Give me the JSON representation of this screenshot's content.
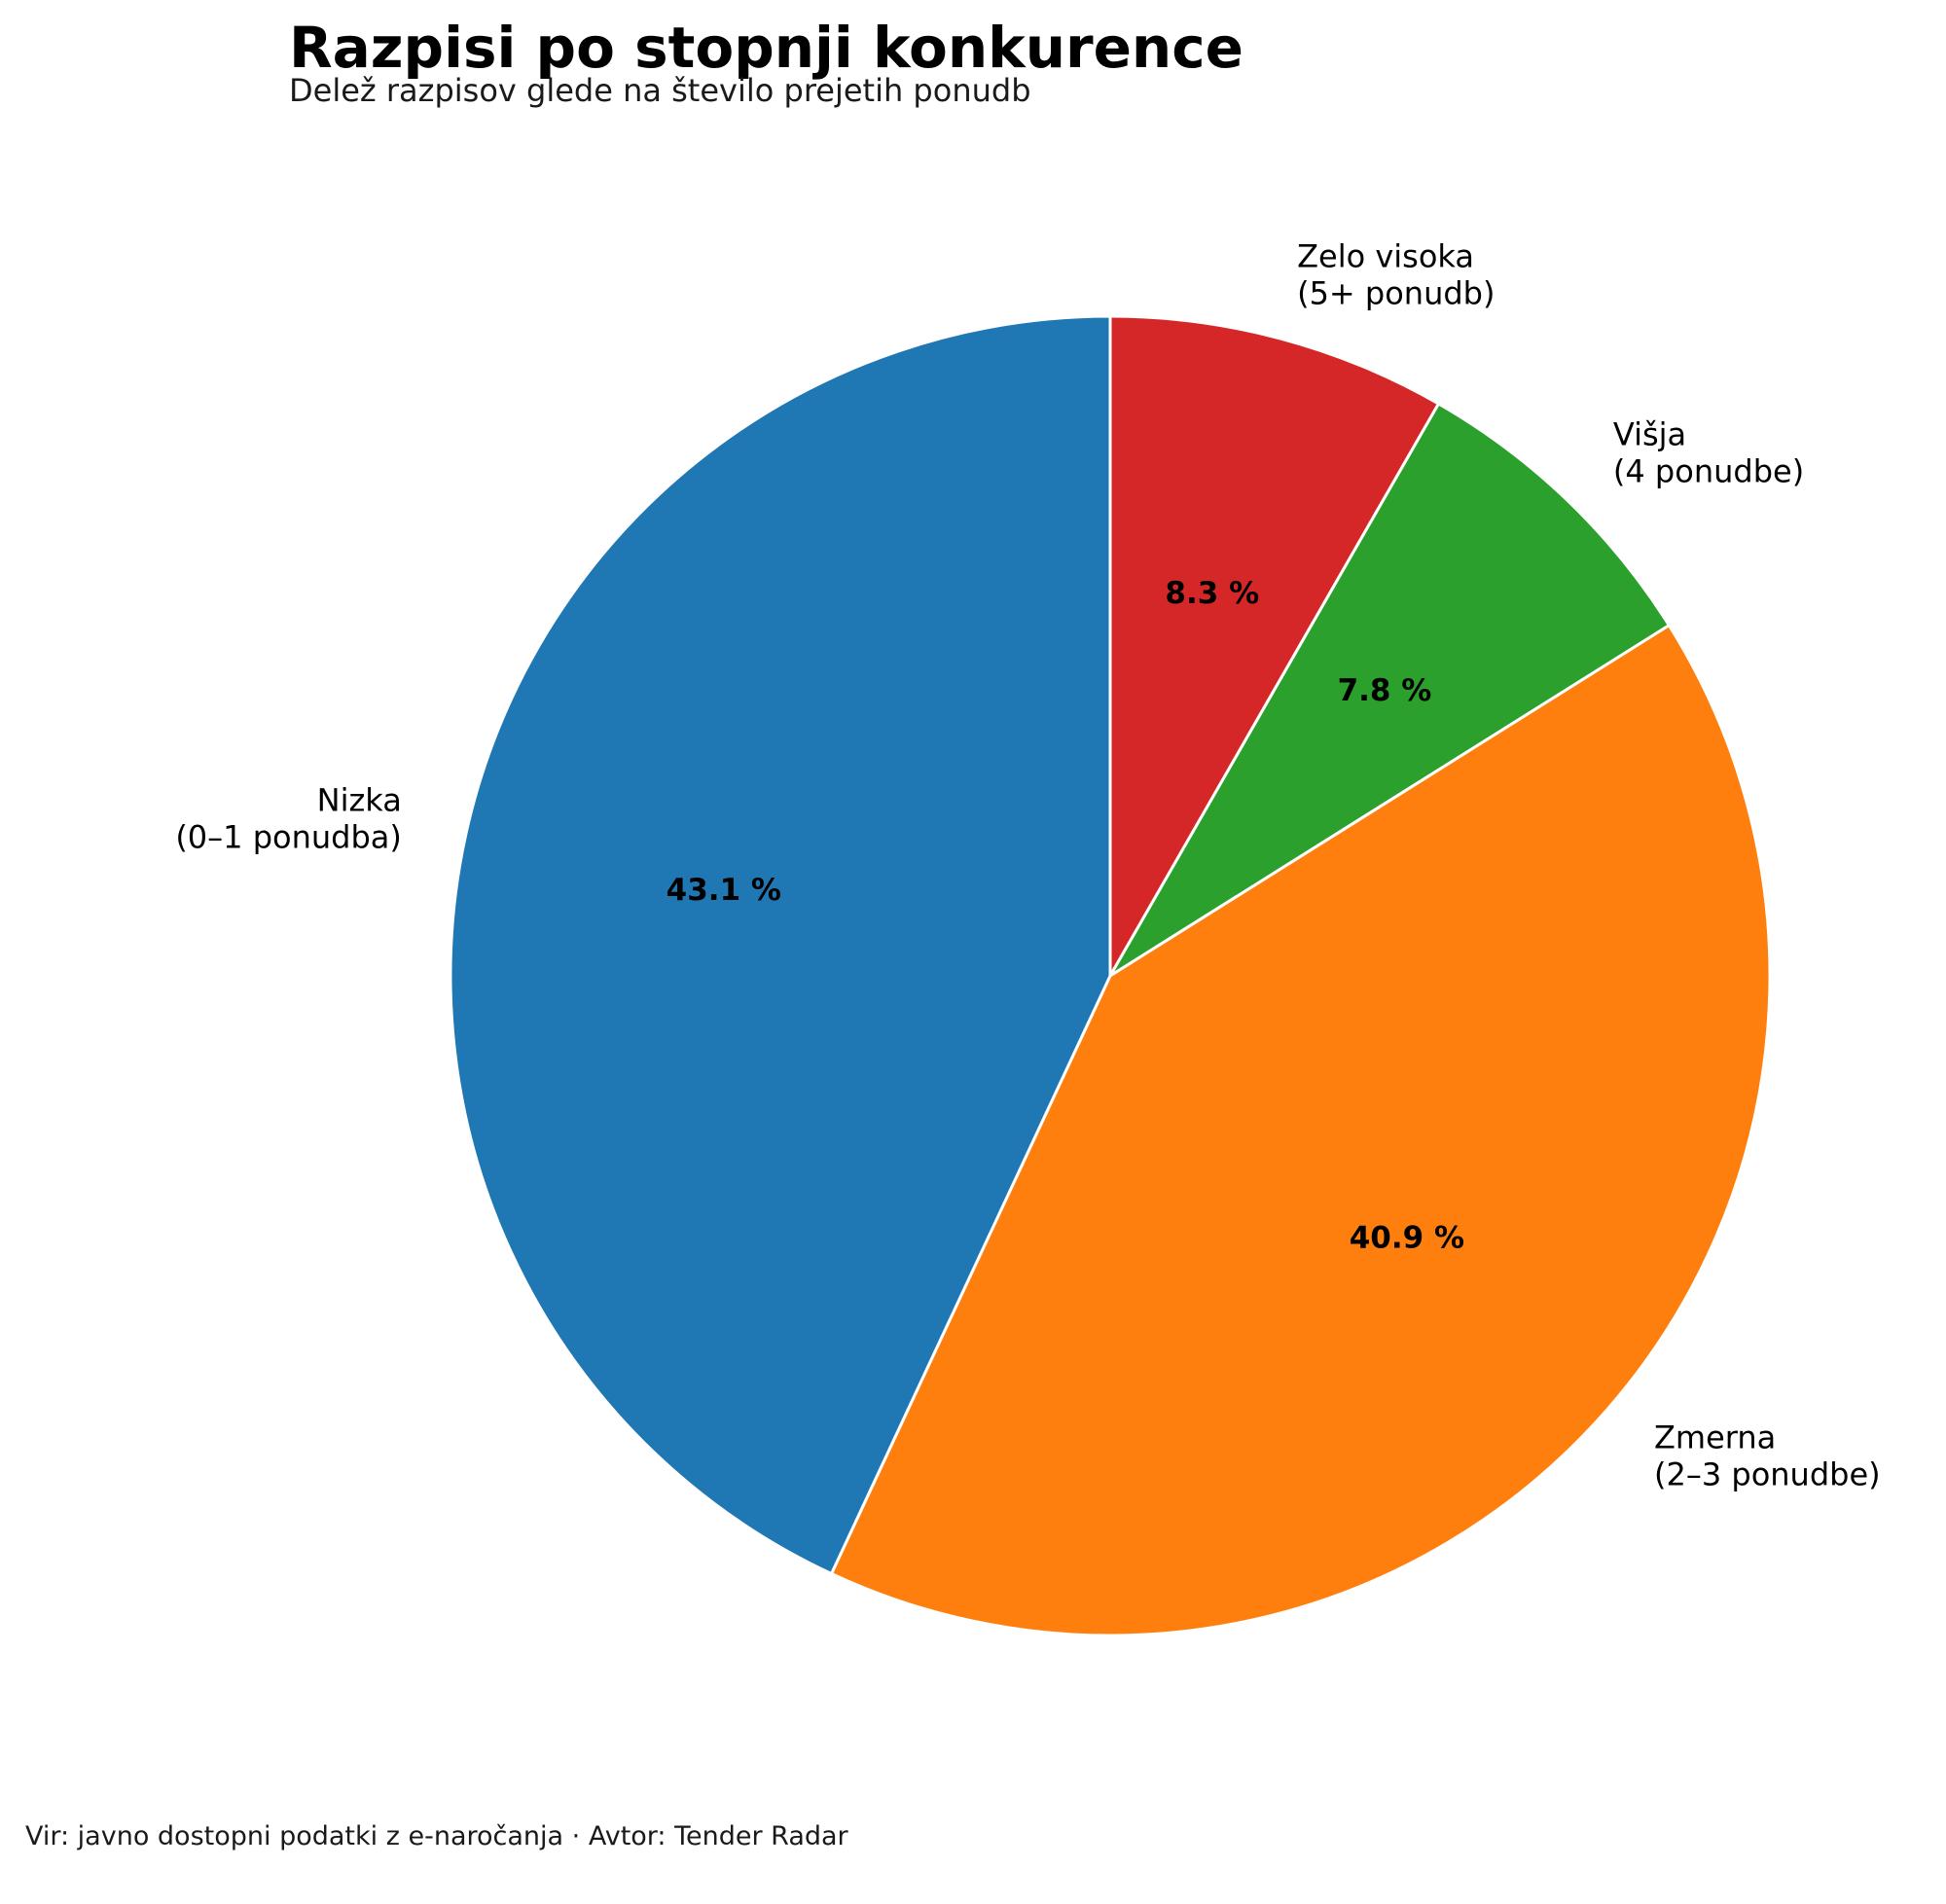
{
  "chart_data": {
    "type": "pie",
    "title": "Razpisi po stopnji konkurence",
    "subtitle": "Delež razpisov glede na število prejetih ponudb",
    "source": "Vir: javno dostopni podatki z e-naročanja · Avtor: Tender Radar",
    "slices": [
      {
        "name": "zelo-visoka",
        "label": [
          "Zelo visoka",
          "(5+ ponudb)"
        ],
        "value": 8.3,
        "value_label": "8.3 %",
        "color": "#d62728"
      },
      {
        "name": "visja",
        "label": [
          "Višja",
          "(4 ponudbe)"
        ],
        "value": 7.8,
        "value_label": "7.8 %",
        "color": "#2ca02c"
      },
      {
        "name": "zmerna",
        "label": [
          "Zmerna",
          "(2–3 ponudbe)"
        ],
        "value": 40.9,
        "value_label": "40.9 %",
        "color": "#ff7f0e"
      },
      {
        "name": "nizka",
        "label": [
          "Nizka",
          "(0–1 ponudba)"
        ],
        "value": 43.1,
        "value_label": "43.1 %",
        "color": "#1f77b4"
      }
    ],
    "start_angle": "12 o'clock",
    "direction": "clockwise",
    "legend": "none"
  }
}
